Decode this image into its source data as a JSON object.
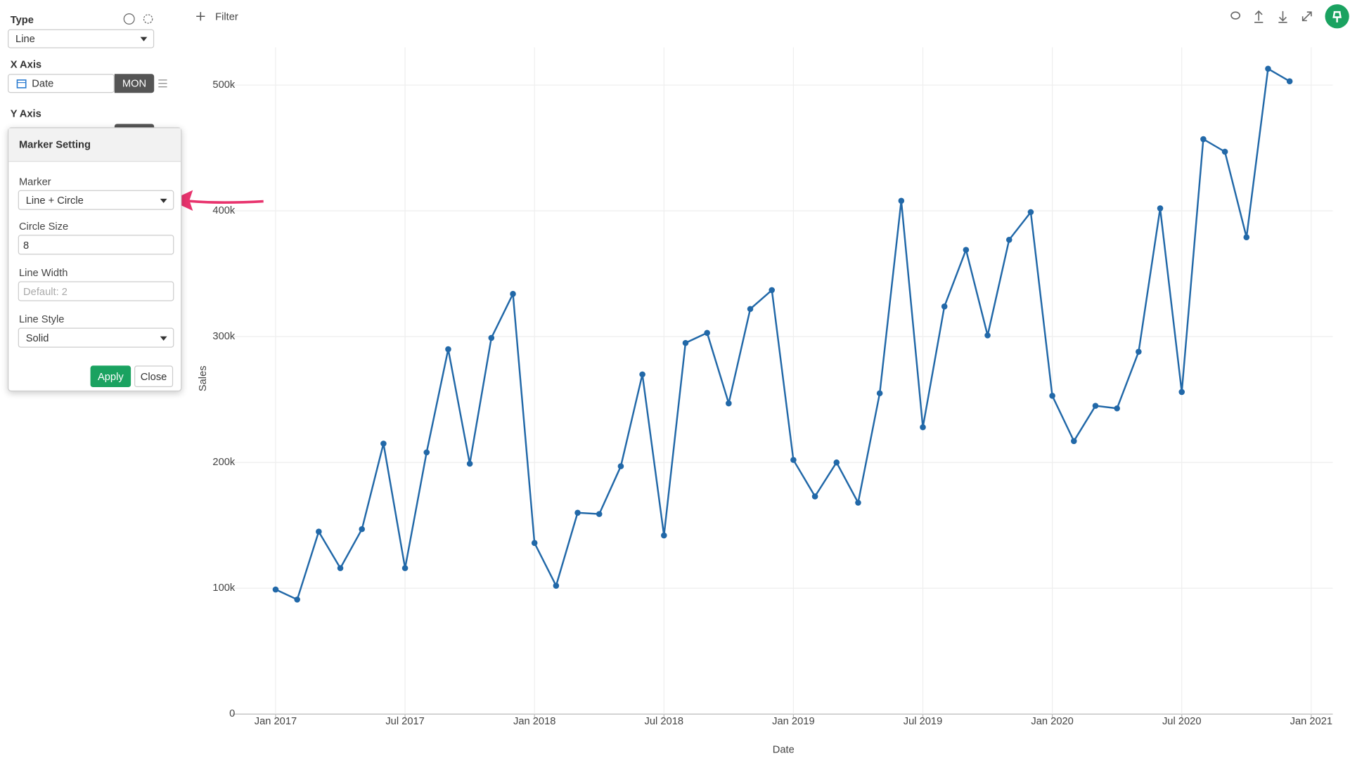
{
  "sidebar": {
    "type_label": "Type",
    "type_value": "Line",
    "x_axis_label": "X Axis",
    "x_axis_field": "Date",
    "x_axis_unit": "MON",
    "y_axis_label": "Y Axis"
  },
  "marker_setting": {
    "title": "Marker Setting",
    "marker_label": "Marker",
    "marker_value": "Line + Circle",
    "circle_size_label": "Circle Size",
    "circle_size_value": "8",
    "line_width_label": "Line Width",
    "line_width_placeholder": "Default: 2",
    "line_style_label": "Line Style",
    "line_style_value": "Solid",
    "apply": "Apply",
    "close": "Close"
  },
  "toolbar": {
    "filter": "Filter"
  },
  "chart_data": {
    "type": "line",
    "x_label": "Date",
    "y_label": "Sales",
    "color": "#2168a8",
    "grid": true,
    "x": [
      "2017-01",
      "2017-02",
      "2017-03",
      "2017-04",
      "2017-05",
      "2017-06",
      "2017-07",
      "2017-08",
      "2017-09",
      "2017-10",
      "2017-11",
      "2017-12",
      "2018-01",
      "2018-02",
      "2018-03",
      "2018-04",
      "2018-05",
      "2018-06",
      "2018-07",
      "2018-08",
      "2018-09",
      "2018-10",
      "2018-11",
      "2018-12",
      "2019-01",
      "2019-02",
      "2019-03",
      "2019-04",
      "2019-05",
      "2019-06",
      "2019-07",
      "2019-08",
      "2019-09",
      "2019-10",
      "2019-11",
      "2019-12",
      "2020-01",
      "2020-02",
      "2020-03",
      "2020-04",
      "2020-05",
      "2020-06",
      "2020-07",
      "2020-08",
      "2020-09",
      "2020-10",
      "2020-11",
      "2020-12"
    ],
    "values": [
      99000,
      91000,
      145000,
      116000,
      147000,
      215000,
      116000,
      208000,
      290000,
      199000,
      299000,
      334000,
      136000,
      102000,
      160000,
      159000,
      197000,
      270000,
      142000,
      295000,
      303000,
      247000,
      322000,
      337000,
      202000,
      173000,
      200000,
      168000,
      255000,
      408000,
      228000,
      324000,
      369000,
      301000,
      377000,
      399000,
      253000,
      217000,
      245000,
      243000,
      288000,
      402000,
      256000,
      457000,
      447000,
      379000,
      513000,
      503000
    ],
    "xlim": [
      "2016-11",
      "2021-02"
    ],
    "xticks": [
      {
        "value": "2017-01",
        "label": "Jan 2017"
      },
      {
        "value": "2017-07",
        "label": "Jul 2017"
      },
      {
        "value": "2018-01",
        "label": "Jan 2018"
      },
      {
        "value": "2018-07",
        "label": "Jul 2018"
      },
      {
        "value": "2019-01",
        "label": "Jan 2019"
      },
      {
        "value": "2019-07",
        "label": "Jul 2019"
      },
      {
        "value": "2020-01",
        "label": "Jan 2020"
      },
      {
        "value": "2020-07",
        "label": "Jul 2020"
      },
      {
        "value": "2021-01",
        "label": "Jan 2021"
      }
    ],
    "ylim": [
      0,
      530000
    ],
    "yticks": [
      0,
      {
        "value": 100000,
        "label": "100k"
      },
      {
        "value": 200000,
        "label": "200k"
      },
      {
        "value": 300000,
        "label": "300k"
      },
      {
        "value": 400000,
        "label": "400k"
      },
      {
        "value": 500000,
        "label": "500k"
      }
    ]
  }
}
